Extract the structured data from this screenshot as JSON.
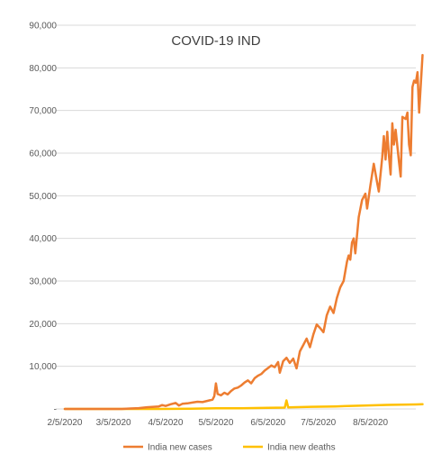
{
  "chart_data": {
    "type": "line",
    "title": "COVID-19 IND",
    "xlabel": "",
    "ylabel": "",
    "ylim": [
      0,
      90000
    ],
    "y_ticks": [
      0,
      10000,
      20000,
      30000,
      40000,
      50000,
      60000,
      70000,
      80000,
      90000
    ],
    "y_tick_labels": [
      "-",
      "10,000",
      "20,000",
      "30,000",
      "40,000",
      "50,000",
      "60,000",
      "70,000",
      "80,000",
      "90,000"
    ],
    "x_range": [
      "2020-02-05",
      "2020-09-01"
    ],
    "x_ticks": [
      "2020-02-05",
      "2020-03-05",
      "2020-04-05",
      "2020-05-05",
      "2020-06-05",
      "2020-07-05",
      "2020-08-05"
    ],
    "x_tick_labels": [
      "2/5/2020",
      "3/5/2020",
      "4/5/2020",
      "5/5/2020",
      "6/5/2020",
      "7/5/2020",
      "8/5/2020"
    ],
    "grid": true,
    "legend_position": "bottom",
    "series": [
      {
        "name": "India new cases",
        "color": "#ed7d31",
        "points": [
          [
            "2020-02-05",
            0
          ],
          [
            "2020-03-01",
            0
          ],
          [
            "2020-03-10",
            0
          ],
          [
            "2020-03-15",
            100
          ],
          [
            "2020-03-20",
            200
          ],
          [
            "2020-03-25",
            400
          ],
          [
            "2020-04-01",
            600
          ],
          [
            "2020-04-03",
            900
          ],
          [
            "2020-04-05",
            700
          ],
          [
            "2020-04-08",
            1100
          ],
          [
            "2020-04-11",
            1400
          ],
          [
            "2020-04-13",
            800
          ],
          [
            "2020-04-15",
            1200
          ],
          [
            "2020-04-18",
            1300
          ],
          [
            "2020-04-21",
            1500
          ],
          [
            "2020-04-24",
            1700
          ],
          [
            "2020-04-27",
            1600
          ],
          [
            "2020-04-30",
            1900
          ],
          [
            "2020-05-03",
            2200
          ],
          [
            "2020-05-04",
            3000
          ],
          [
            "2020-05-05",
            6000
          ],
          [
            "2020-05-06",
            3500
          ],
          [
            "2020-05-08",
            3200
          ],
          [
            "2020-05-10",
            3800
          ],
          [
            "2020-05-12",
            3400
          ],
          [
            "2020-05-14",
            4200
          ],
          [
            "2020-05-16",
            4800
          ],
          [
            "2020-05-18",
            5000
          ],
          [
            "2020-05-20",
            5500
          ],
          [
            "2020-05-22",
            6200
          ],
          [
            "2020-05-24",
            6700
          ],
          [
            "2020-05-26",
            6000
          ],
          [
            "2020-05-28",
            7200
          ],
          [
            "2020-05-30",
            7800
          ],
          [
            "2020-06-01",
            8200
          ],
          [
            "2020-06-03",
            9000
          ],
          [
            "2020-06-05",
            9600
          ],
          [
            "2020-06-07",
            10200
          ],
          [
            "2020-06-09",
            9800
          ],
          [
            "2020-06-11",
            11000
          ],
          [
            "2020-06-12",
            8500
          ],
          [
            "2020-06-14",
            11200
          ],
          [
            "2020-06-16",
            12000
          ],
          [
            "2020-06-18",
            10800
          ],
          [
            "2020-06-20",
            11800
          ],
          [
            "2020-06-22",
            9500
          ],
          [
            "2020-06-24",
            13500
          ],
          [
            "2020-06-26",
            15000
          ],
          [
            "2020-06-28",
            16500
          ],
          [
            "2020-06-30",
            14500
          ],
          [
            "2020-07-02",
            17500
          ],
          [
            "2020-07-04",
            19800
          ],
          [
            "2020-07-06",
            19000
          ],
          [
            "2020-07-08",
            18000
          ],
          [
            "2020-07-10",
            22000
          ],
          [
            "2020-07-12",
            24000
          ],
          [
            "2020-07-14",
            22500
          ],
          [
            "2020-07-16",
            26000
          ],
          [
            "2020-07-18",
            28500
          ],
          [
            "2020-07-20",
            30000
          ],
          [
            "2020-07-22",
            34500
          ],
          [
            "2020-07-23",
            36000
          ],
          [
            "2020-07-24",
            35000
          ],
          [
            "2020-07-25",
            39000
          ],
          [
            "2020-07-26",
            40000
          ],
          [
            "2020-07-27",
            36500
          ],
          [
            "2020-07-29",
            45000
          ],
          [
            "2020-07-31",
            49000
          ],
          [
            "2020-08-02",
            50500
          ],
          [
            "2020-08-03",
            47000
          ],
          [
            "2020-08-05",
            52500
          ],
          [
            "2020-08-07",
            57500
          ],
          [
            "2020-08-09",
            53000
          ],
          [
            "2020-08-10",
            51000
          ],
          [
            "2020-08-12",
            59000
          ],
          [
            "2020-08-13",
            64000
          ],
          [
            "2020-08-14",
            58500
          ],
          [
            "2020-08-15",
            65000
          ],
          [
            "2020-08-16",
            59500
          ],
          [
            "2020-08-17",
            55000
          ],
          [
            "2020-08-18",
            67000
          ],
          [
            "2020-08-19",
            62000
          ],
          [
            "2020-08-20",
            65500
          ],
          [
            "2020-08-22",
            58000
          ],
          [
            "2020-08-23",
            54500
          ],
          [
            "2020-08-24",
            68500
          ],
          [
            "2020-08-26",
            68000
          ],
          [
            "2020-08-27",
            69500
          ],
          [
            "2020-08-28",
            62000
          ],
          [
            "2020-08-29",
            59500
          ],
          [
            "2020-08-30",
            75500
          ],
          [
            "2020-08-31",
            77000
          ],
          [
            "2020-09-01",
            76500
          ],
          [
            "2020-09-02",
            79000
          ],
          [
            "2020-09-03",
            69500
          ],
          [
            "2020-09-05",
            83000
          ]
        ]
      },
      {
        "name": "India new deaths",
        "color": "#ffc000",
        "points": [
          [
            "2020-02-05",
            0
          ],
          [
            "2020-04-01",
            0
          ],
          [
            "2020-04-20",
            50
          ],
          [
            "2020-05-05",
            150
          ],
          [
            "2020-05-20",
            150
          ],
          [
            "2020-06-05",
            280
          ],
          [
            "2020-06-15",
            320
          ],
          [
            "2020-06-16",
            2000
          ],
          [
            "2020-06-17",
            350
          ],
          [
            "2020-07-01",
            500
          ],
          [
            "2020-07-15",
            600
          ],
          [
            "2020-08-01",
            800
          ],
          [
            "2020-08-15",
            950
          ],
          [
            "2020-09-01",
            1050
          ],
          [
            "2020-09-05",
            1100
          ]
        ]
      }
    ]
  }
}
